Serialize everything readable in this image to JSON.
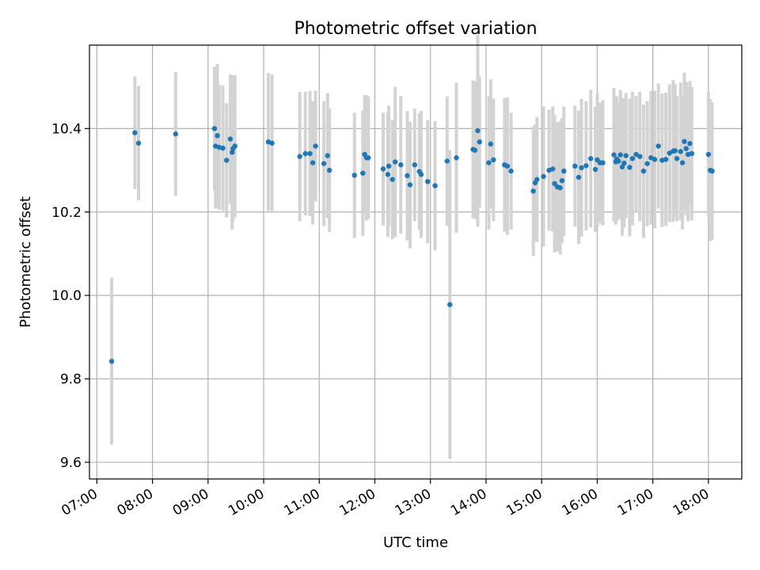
{
  "chart_data": {
    "type": "scatter",
    "title": "Photometric offset variation",
    "xlabel": "UTC time",
    "ylabel": "Photometric offset",
    "grid": true,
    "xlim": [
      "06:52",
      "18:36"
    ],
    "ylim": [
      9.56,
      10.6
    ],
    "x_ticks": [
      "07:00",
      "08:00",
      "09:00",
      "10:00",
      "11:00",
      "12:00",
      "13:00",
      "14:00",
      "15:00",
      "16:00",
      "17:00",
      "18:00"
    ],
    "y_ticks": [
      "9.6",
      "9.8",
      "10.0",
      "10.2",
      "10.4"
    ],
    "y_tick_values": [
      9.6,
      9.8,
      10.0,
      10.2,
      10.4
    ],
    "colors": {
      "marker": "#1f77b4",
      "errorbar": "#d3d3d3",
      "grid": "#b0b0b0"
    },
    "series": [
      {
        "x": [
          "07:16",
          "07:41",
          "07:45",
          "08:25",
          "09:07",
          "09:08",
          "09:10",
          "09:12",
          "09:16",
          "09:20",
          "09:24",
          "09:26",
          "09:27",
          "09:29",
          "10:05",
          "10:09",
          "10:39",
          "10:45",
          "10:50",
          "10:53",
          "10:56",
          "11:05",
          "11:09",
          "11:11",
          "11:38",
          "11:47",
          "11:49",
          "11:51",
          "11:53",
          "12:09",
          "12:14",
          "12:15",
          "12:19",
          "12:22",
          "12:28",
          "12:35",
          "12:38",
          "12:43",
          "12:48",
          "12:50",
          "12:57",
          "13:05",
          "13:18",
          "13:21",
          "13:28",
          "13:46",
          "13:48",
          "13:51",
          "13:53",
          "14:03",
          "14:05",
          "14:08",
          "14:20",
          "14:23",
          "14:27",
          "14:51",
          "14:53",
          "14:55",
          "15:02",
          "15:08",
          "15:12",
          "15:14",
          "15:17",
          "15:20",
          "15:22",
          "15:24",
          "15:36",
          "15:40",
          "15:43",
          "15:48",
          "15:53",
          "15:58",
          "16:00",
          "16:03",
          "16:06",
          "16:18",
          "16:20",
          "16:21",
          "16:23",
          "16:25",
          "16:27",
          "16:29",
          "16:31",
          "16:35",
          "16:38",
          "16:42",
          "16:46",
          "16:50",
          "16:54",
          "16:58",
          "17:02",
          "17:06",
          "17:10",
          "17:14",
          "17:18",
          "17:22",
          "17:24",
          "17:26",
          "17:30",
          "17:32",
          "17:34",
          "17:36",
          "17:38",
          "17:40",
          "17:42",
          "18:00",
          "18:02",
          "18:04"
        ],
        "y": [
          9.842,
          10.39,
          10.365,
          10.387,
          10.4,
          10.358,
          10.383,
          10.355,
          10.353,
          10.324,
          10.375,
          10.343,
          10.352,
          10.358,
          10.368,
          10.365,
          10.333,
          10.34,
          10.34,
          10.318,
          10.358,
          10.316,
          10.335,
          10.3,
          10.288,
          10.293,
          10.338,
          10.33,
          10.33,
          10.303,
          10.29,
          10.31,
          10.278,
          10.32,
          10.313,
          10.287,
          10.265,
          10.313,
          10.297,
          10.29,
          10.273,
          10.263,
          10.322,
          9.978,
          10.33,
          10.35,
          10.348,
          10.395,
          10.368,
          10.318,
          10.363,
          10.325,
          10.313,
          10.31,
          10.298,
          10.25,
          10.27,
          10.278,
          10.285,
          10.3,
          10.303,
          10.268,
          10.26,
          10.258,
          10.275,
          10.298,
          10.31,
          10.283,
          10.306,
          10.311,
          10.328,
          10.302,
          10.325,
          10.318,
          10.318,
          10.337,
          10.32,
          10.327,
          10.322,
          10.337,
          10.308,
          10.317,
          10.335,
          10.307,
          10.328,
          10.338,
          10.333,
          10.298,
          10.316,
          10.33,
          10.326,
          10.358,
          10.324,
          10.326,
          10.341,
          10.346,
          10.347,
          10.328,
          10.345,
          10.318,
          10.369,
          10.352,
          10.338,
          10.364,
          10.34,
          10.338,
          10.3,
          10.298
        ],
        "err": [
          0.2,
          0.135,
          0.137,
          0.148,
          0.148,
          0.15,
          0.172,
          0.15,
          0.15,
          0.137,
          0.155,
          0.185,
          0.175,
          0.17,
          0.165,
          0.165,
          0.155,
          0.148,
          0.15,
          0.148,
          0.133,
          0.15,
          0.15,
          0.148,
          0.15,
          0.15,
          0.142,
          0.15,
          0.147,
          0.135,
          0.15,
          0.145,
          0.143,
          0.18,
          0.165,
          0.155,
          0.152,
          0.135,
          0.14,
          0.152,
          0.148,
          0.155,
          0.155,
          0.37,
          0.18,
          0.165,
          0.165,
          0.23,
          0.157,
          0.16,
          0.155,
          0.147,
          0.16,
          0.165,
          0.14,
          0.155,
          0.14,
          0.15,
          0.168,
          0.145,
          0.15,
          0.165,
          0.155,
          0.16,
          0.15,
          0.155,
          0.145,
          0.16,
          0.165,
          0.155,
          0.165,
          0.15,
          0.16,
          0.145,
          0.15,
          0.16,
          0.15,
          0.15,
          0.14,
          0.155,
          0.165,
          0.155,
          0.15,
          0.165,
          0.16,
          0.14,
          0.155,
          0.16,
          0.15,
          0.16,
          0.165,
          0.15,
          0.16,
          0.16,
          0.165,
          0.17,
          0.16,
          0.15,
          0.165,
          0.16,
          0.165,
          0.16,
          0.16,
          0.15,
          0.16,
          0.15,
          0.17,
          0.165
        ]
      }
    ]
  }
}
